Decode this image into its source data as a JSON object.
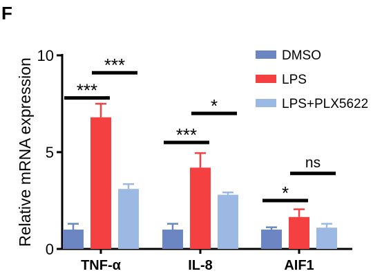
{
  "panel_label": "F",
  "chart_data": {
    "type": "bar",
    "ylabel": "Relative mRNA expression",
    "ylim": [
      0,
      10
    ],
    "yticks": [
      "0",
      "5",
      "10"
    ],
    "categories": [
      "TNF-α",
      "IL-8",
      "AIF1"
    ],
    "series": [
      {
        "name": "DMSO",
        "color": "#6b86c2",
        "values": [
          1.0,
          1.0,
          1.0
        ],
        "errors": [
          0.3,
          0.3,
          0.12
        ]
      },
      {
        "name": "LPS",
        "color": "#f44040",
        "values": [
          6.8,
          4.2,
          1.65
        ],
        "errors": [
          0.7,
          0.75,
          0.4
        ]
      },
      {
        "name": "LPS+PLX5622",
        "color": "#9cb9e3",
        "values": [
          3.1,
          2.8,
          1.1
        ],
        "errors": [
          0.25,
          0.12,
          0.2
        ]
      }
    ],
    "significance": [
      {
        "category": 0,
        "pair": [
          0,
          1
        ],
        "label": "***",
        "y": 7.8
      },
      {
        "category": 0,
        "pair": [
          1,
          2
        ],
        "label": "***",
        "y": 9.1
      },
      {
        "category": 1,
        "pair": [
          0,
          1
        ],
        "label": "***",
        "y": 5.5
      },
      {
        "category": 1,
        "pair": [
          1,
          2
        ],
        "label": "*",
        "y": 7.0
      },
      {
        "category": 2,
        "pair": [
          0,
          1
        ],
        "label": "*",
        "y": 2.5
      },
      {
        "category": 2,
        "pair": [
          1,
          2
        ],
        "label": "ns",
        "y": 3.9
      }
    ],
    "legend_position": "top-right",
    "grid": false
  }
}
